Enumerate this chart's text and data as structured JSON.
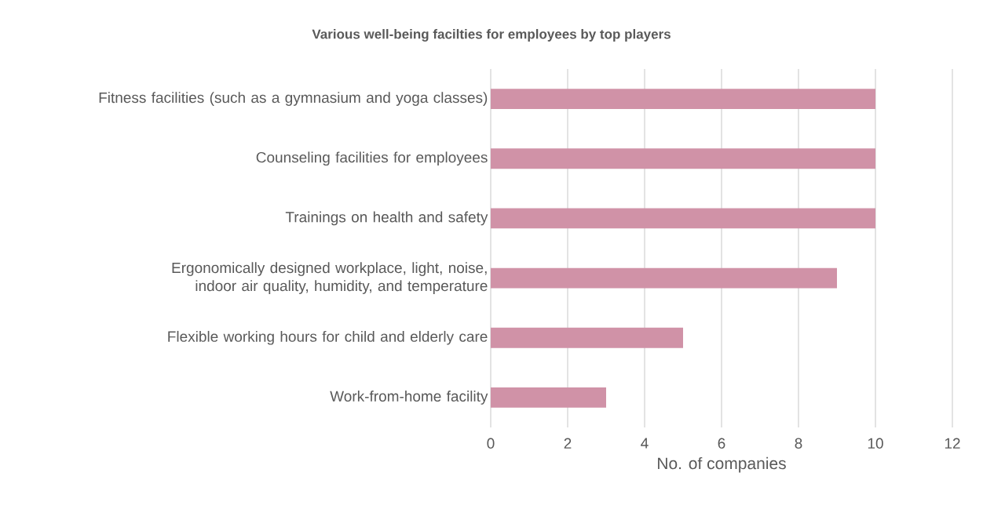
{
  "chart_data": {
    "type": "bar",
    "orientation": "horizontal",
    "title": "Various well-being facilties for employees by top players",
    "xlabel": "No. of companies",
    "categories": [
      "Fitness facilities (such as a gymnasium and yoga classes)",
      "Counseling facilities for employees",
      "Trainings on health and safety",
      "Ergonomically designed workplace, light, noise, indoor air quality, humidity, and temperature",
      "Flexible working hours for child and elderly care",
      "Work-from-home facility"
    ],
    "values": [
      10,
      10,
      10,
      9,
      5,
      3
    ],
    "color": "#d092a7",
    "xlim": [
      0,
      12
    ],
    "xticks": [
      0,
      2,
      4,
      6,
      8,
      10,
      12
    ],
    "grid": "x"
  }
}
